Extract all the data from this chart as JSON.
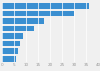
{
  "values": [
    36.4,
    30.0,
    17.6,
    13.5,
    8.7,
    7.3,
    6.5,
    5.8
  ],
  "bar_color": "#3a8fd1",
  "background_color": "#f0f0f0",
  "plot_bg_color": "#f0f0f0",
  "xlim": [
    0,
    40
  ],
  "bar_height": 0.75,
  "grid_color": "#ffffff",
  "tick_color": "#999999",
  "tick_fontsize": 3.0,
  "xticks": [
    0,
    5,
    10,
    15,
    20,
    25,
    30,
    35,
    40
  ]
}
